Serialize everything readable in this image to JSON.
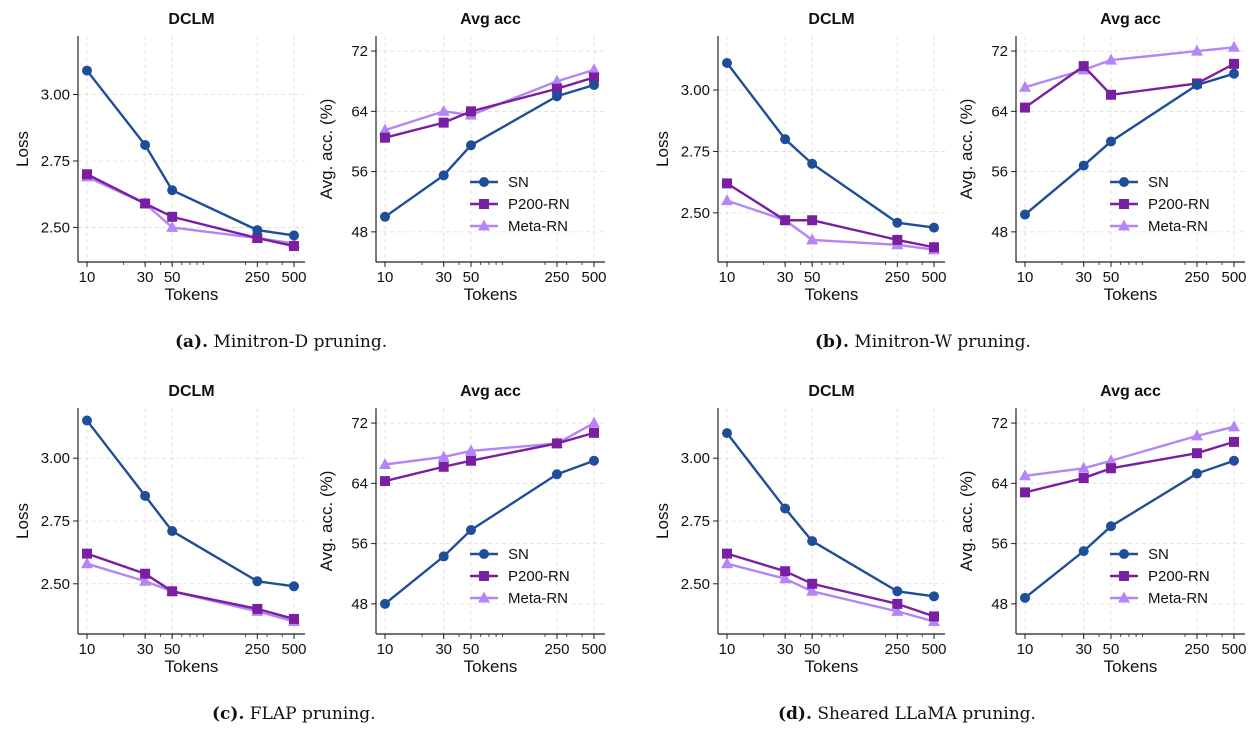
{
  "chart_data": [
    {
      "type": "line",
      "panel": "a",
      "title": "DCLM",
      "xlabel": "Tokens",
      "ylabel": "Loss",
      "xscale": "log",
      "x": [
        10,
        30,
        50,
        250,
        500
      ],
      "ylim": [
        2.37,
        3.22
      ],
      "yticks": [
        2.5,
        2.75,
        3.0
      ],
      "ytick_labels": [
        "2.50",
        "2.75",
        "3.00"
      ],
      "series": [
        {
          "name": "SN",
          "values": [
            3.09,
            2.81,
            2.64,
            2.49,
            2.47
          ]
        },
        {
          "name": "P200-RN",
          "values": [
            2.7,
            2.59,
            2.54,
            2.46,
            2.43
          ]
        },
        {
          "name": "Meta-RN",
          "values": [
            2.69,
            2.59,
            2.5,
            2.46,
            2.44
          ]
        }
      ],
      "legend": null
    },
    {
      "type": "line",
      "panel": "a",
      "title": "Avg acc",
      "xlabel": "Tokens",
      "ylabel": "Avg. acc. (%)",
      "xscale": "log",
      "x": [
        10,
        30,
        50,
        250,
        500
      ],
      "ylim": [
        44,
        74
      ],
      "yticks": [
        48,
        56,
        64,
        72
      ],
      "ytick_labels": [
        "48",
        "56",
        "64",
        "72"
      ],
      "series": [
        {
          "name": "SN",
          "values": [
            50.0,
            55.5,
            59.5,
            66.0,
            67.5
          ]
        },
        {
          "name": "P200-RN",
          "values": [
            60.5,
            62.5,
            64.0,
            67.0,
            68.5
          ]
        },
        {
          "name": "Meta-RN",
          "values": [
            61.5,
            64.0,
            63.5,
            68.0,
            69.5
          ]
        }
      ],
      "legend": "lower-right"
    },
    {
      "type": "line",
      "panel": "b",
      "title": "DCLM",
      "xlabel": "Tokens",
      "ylabel": "Loss",
      "xscale": "log",
      "x": [
        10,
        30,
        50,
        250,
        500
      ],
      "ylim": [
        2.3,
        3.22
      ],
      "yticks": [
        2.5,
        2.75,
        3.0
      ],
      "ytick_labels": [
        "2.50",
        "2.75",
        "3.00"
      ],
      "series": [
        {
          "name": "SN",
          "values": [
            3.11,
            2.8,
            2.7,
            2.46,
            2.44
          ]
        },
        {
          "name": "P200-RN",
          "values": [
            2.62,
            2.47,
            2.47,
            2.39,
            2.36
          ]
        },
        {
          "name": "Meta-RN",
          "values": [
            2.55,
            2.47,
            2.39,
            2.37,
            2.35
          ]
        }
      ],
      "legend": null
    },
    {
      "type": "line",
      "panel": "b",
      "title": "Avg acc",
      "xlabel": "Tokens",
      "ylabel": "Avg. acc. (%)",
      "xscale": "log",
      "x": [
        10,
        30,
        50,
        250,
        500
      ],
      "ylim": [
        44,
        74
      ],
      "yticks": [
        48,
        56,
        64,
        72
      ],
      "ytick_labels": [
        "48",
        "56",
        "64",
        "72"
      ],
      "series": [
        {
          "name": "SN",
          "values": [
            50.3,
            56.8,
            60.0,
            67.5,
            69.0
          ]
        },
        {
          "name": "P200-RN",
          "values": [
            64.5,
            70.0,
            66.2,
            67.7,
            70.3
          ]
        },
        {
          "name": "Meta-RN",
          "values": [
            67.2,
            69.5,
            70.8,
            72.0,
            72.5
          ]
        }
      ],
      "legend": "lower-right"
    },
    {
      "type": "line",
      "panel": "c",
      "title": "DCLM",
      "xlabel": "Tokens",
      "ylabel": "Loss",
      "xscale": "log",
      "x": [
        10,
        30,
        50,
        250,
        500
      ],
      "ylim": [
        2.3,
        3.2
      ],
      "yticks": [
        2.5,
        2.75,
        3.0
      ],
      "ytick_labels": [
        "2.50",
        "2.75",
        "3.00"
      ],
      "series": [
        {
          "name": "SN",
          "values": [
            3.15,
            2.85,
            2.71,
            2.51,
            2.49
          ]
        },
        {
          "name": "P200-RN",
          "values": [
            2.62,
            2.54,
            2.47,
            2.4,
            2.36
          ]
        },
        {
          "name": "Meta-RN",
          "values": [
            2.58,
            2.51,
            2.47,
            2.39,
            2.35
          ]
        }
      ],
      "legend": null
    },
    {
      "type": "line",
      "panel": "c",
      "title": "Avg acc",
      "xlabel": "Tokens",
      "ylabel": "Avg. acc. (%)",
      "xscale": "log",
      "x": [
        10,
        30,
        50,
        250,
        500
      ],
      "ylim": [
        44,
        74
      ],
      "yticks": [
        48,
        56,
        64,
        72
      ],
      "ytick_labels": [
        "48",
        "56",
        "64",
        "72"
      ],
      "series": [
        {
          "name": "SN",
          "values": [
            48.0,
            54.3,
            57.8,
            65.2,
            67.0
          ]
        },
        {
          "name": "P200-RN",
          "values": [
            64.3,
            66.2,
            67.0,
            69.3,
            70.7
          ]
        },
        {
          "name": "Meta-RN",
          "values": [
            66.5,
            67.5,
            68.3,
            69.3,
            72.0
          ]
        }
      ],
      "legend": "lower-right"
    },
    {
      "type": "line",
      "panel": "d",
      "title": "DCLM",
      "xlabel": "Tokens",
      "ylabel": "Loss",
      "xscale": "log",
      "x": [
        10,
        30,
        50,
        250,
        500
      ],
      "ylim": [
        2.3,
        3.2
      ],
      "yticks": [
        2.5,
        2.75,
        3.0
      ],
      "ytick_labels": [
        "2.50",
        "2.75",
        "3.00"
      ],
      "series": [
        {
          "name": "SN",
          "values": [
            3.1,
            2.8,
            2.67,
            2.47,
            2.45
          ]
        },
        {
          "name": "P200-RN",
          "values": [
            2.62,
            2.55,
            2.5,
            2.42,
            2.37
          ]
        },
        {
          "name": "Meta-RN",
          "values": [
            2.58,
            2.52,
            2.47,
            2.39,
            2.35
          ]
        }
      ],
      "legend": null
    },
    {
      "type": "line",
      "panel": "d",
      "title": "Avg acc",
      "xlabel": "Tokens",
      "ylabel": "Avg. acc. (%)",
      "xscale": "log",
      "x": [
        10,
        30,
        50,
        250,
        500
      ],
      "ylim": [
        44,
        74
      ],
      "yticks": [
        48,
        56,
        64,
        72
      ],
      "ytick_labels": [
        "48",
        "56",
        "64",
        "72"
      ],
      "series": [
        {
          "name": "SN",
          "values": [
            48.8,
            55.0,
            58.3,
            65.3,
            67.0
          ]
        },
        {
          "name": "P200-RN",
          "values": [
            62.8,
            64.7,
            66.0,
            68.0,
            69.5
          ]
        },
        {
          "name": "Meta-RN",
          "values": [
            65.0,
            66.0,
            67.0,
            70.3,
            71.5
          ]
        }
      ],
      "legend": "lower-right"
    }
  ],
  "series_styles": [
    {
      "name": "SN",
      "color": "#1f4e99",
      "marker": "circle"
    },
    {
      "name": "P200-RN",
      "color": "#7a1fa2",
      "marker": "square"
    },
    {
      "name": "Meta-RN",
      "color": "#b287f5",
      "marker": "triangle"
    }
  ],
  "x_tick_labels": [
    "10",
    "30",
    "50",
    "250",
    "500"
  ],
  "captions": [
    {
      "label": "(a).",
      "text": "Minitron-D pruning."
    },
    {
      "label": "(b).",
      "text": "Minitron-W pruning."
    },
    {
      "label": "(c).",
      "text": "FLAP pruning."
    },
    {
      "label": "(d).",
      "text": "Sheared LLaMA pruning."
    }
  ]
}
